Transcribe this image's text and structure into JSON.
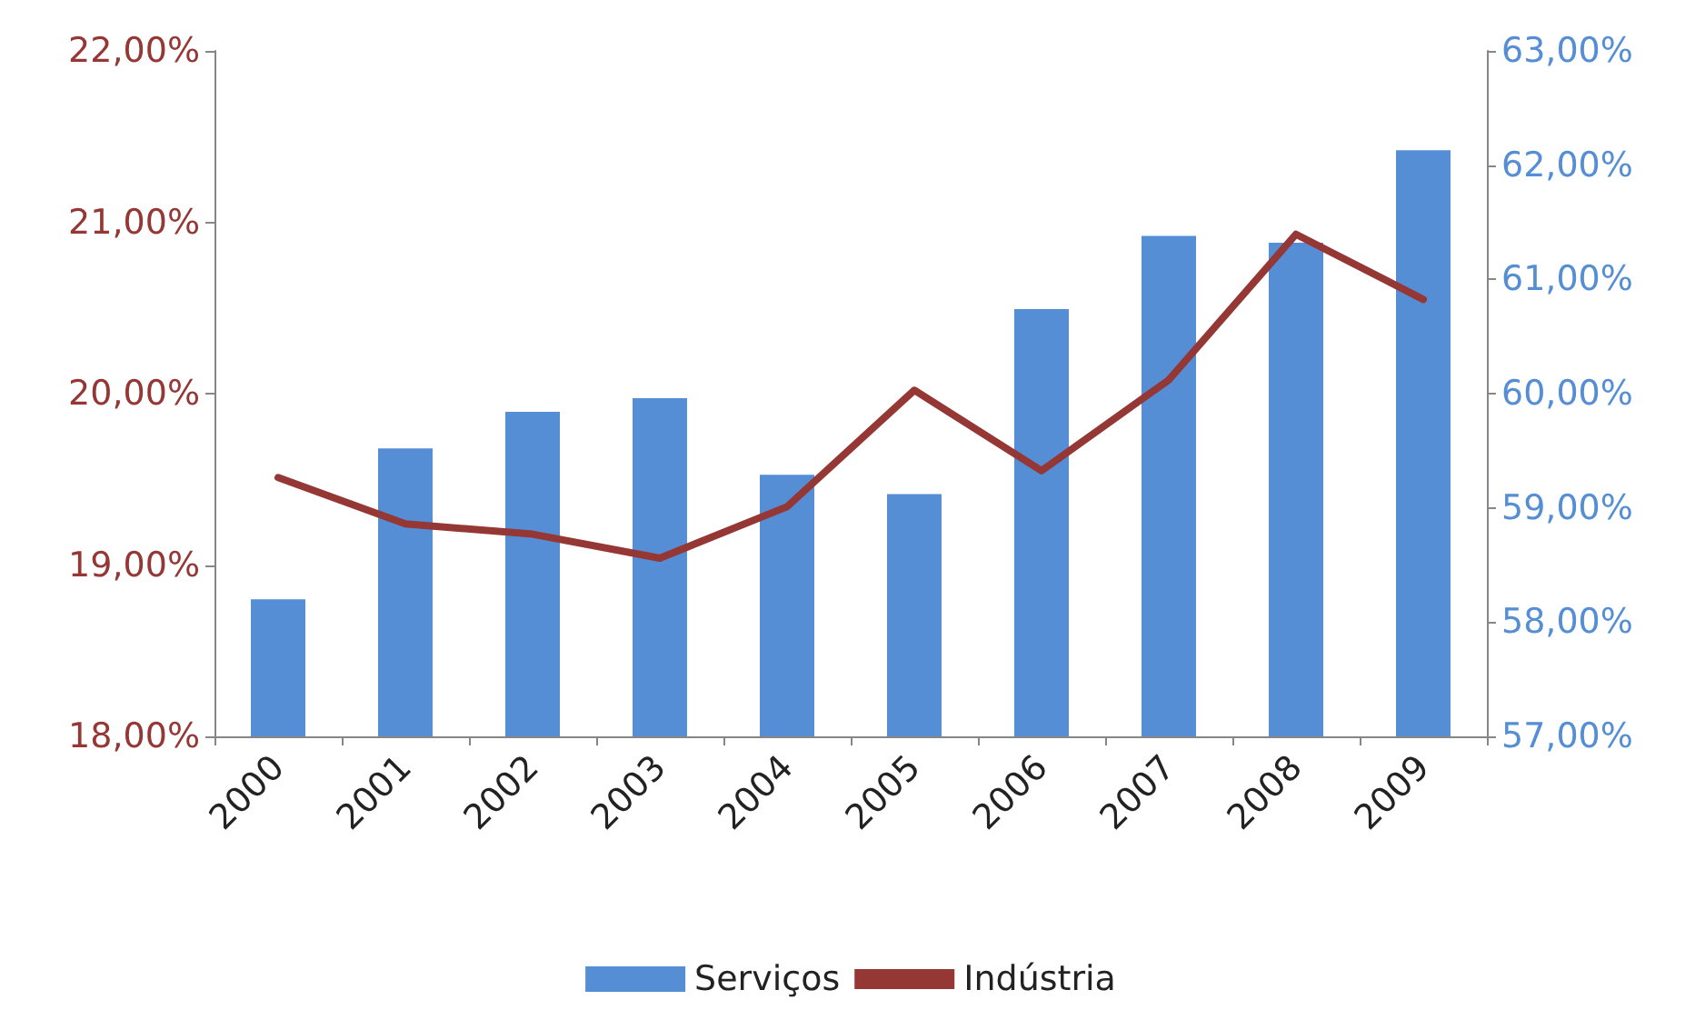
{
  "chart_data": {
    "type": "bar",
    "categories": [
      "2000",
      "2001",
      "2002",
      "2003",
      "2004",
      "2005",
      "2006",
      "2007",
      "2008",
      "2009"
    ],
    "series": [
      {
        "name": "Serviços",
        "axis": "y2",
        "color": "#558ed5",
        "values": [
          58.2,
          59.52,
          59.84,
          59.96,
          59.29,
          59.12,
          60.74,
          61.38,
          61.32,
          62.13
        ]
      },
      {
        "name": "Indústria",
        "type": "line",
        "axis": "y",
        "color": "#953735",
        "values": [
          19.51,
          19.24,
          19.18,
          19.04,
          19.34,
          20.02,
          19.55,
          20.08,
          20.93,
          20.55
        ]
      }
    ],
    "ylim": [
      18,
      22
    ],
    "yticks": [
      {
        "value": 18,
        "label": "18,00%"
      },
      {
        "value": 19,
        "label": "19,00%"
      },
      {
        "value": 20,
        "label": "20,00%"
      },
      {
        "value": 21,
        "label": "21,00%"
      },
      {
        "value": 22,
        "label": "22,00%"
      }
    ],
    "y2lim": [
      57,
      63
    ],
    "y2ticks": [
      {
        "value": 57,
        "label": "57,00%"
      },
      {
        "value": 58,
        "label": "58,00%"
      },
      {
        "value": 59,
        "label": "59,00%"
      },
      {
        "value": 60,
        "label": "60,00%"
      },
      {
        "value": 61,
        "label": "61,00%"
      },
      {
        "value": 62,
        "label": "62,00%"
      },
      {
        "value": 63,
        "label": "63,00%"
      }
    ],
    "grid": false,
    "legend": "bottom",
    "marker": "none",
    "line_style": "solid"
  }
}
